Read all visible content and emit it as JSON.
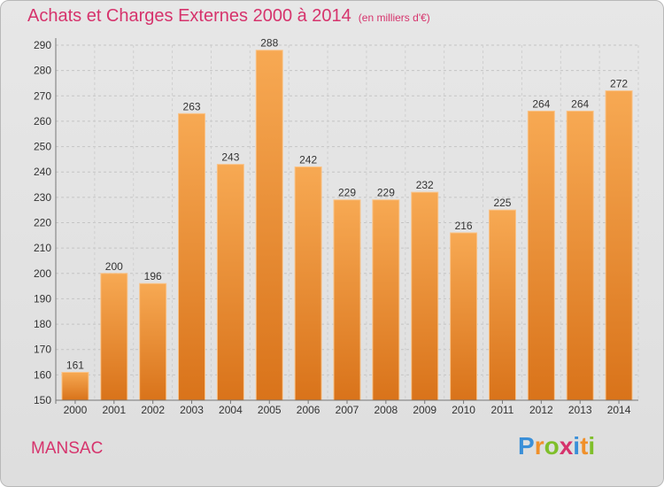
{
  "header": {
    "title": "Achats et Charges Externes 2000 à 2014",
    "subtitle": "(en milliers d'€)"
  },
  "footer": {
    "town": "MANSAC",
    "logo": [
      "P",
      "r",
      "o",
      "x",
      "i",
      "t",
      "i"
    ],
    "logo_colors": [
      "#3a8fd8",
      "#f0902a",
      "#7fbf2a",
      "#d6336c",
      "#3a8fd8",
      "#f0902a",
      "#7fbf2a"
    ]
  },
  "chart_data": {
    "type": "bar",
    "title": "Achats et Charges Externes 2000 à 2014",
    "categories": [
      "2000",
      "2001",
      "2002",
      "2003",
      "2004",
      "2005",
      "2006",
      "2007",
      "2008",
      "2009",
      "2010",
      "2011",
      "2012",
      "2013",
      "2014"
    ],
    "values": [
      161,
      200,
      196,
      263,
      243,
      288,
      242,
      229,
      229,
      232,
      216,
      225,
      264,
      264,
      272
    ],
    "ylim": [
      150,
      290
    ],
    "yticks": [
      150,
      160,
      170,
      180,
      190,
      200,
      210,
      220,
      230,
      240,
      250,
      260,
      270,
      280,
      290
    ],
    "grid": true,
    "bar_color_top": "#f7a953",
    "bar_color_bottom": "#d9731a"
  }
}
